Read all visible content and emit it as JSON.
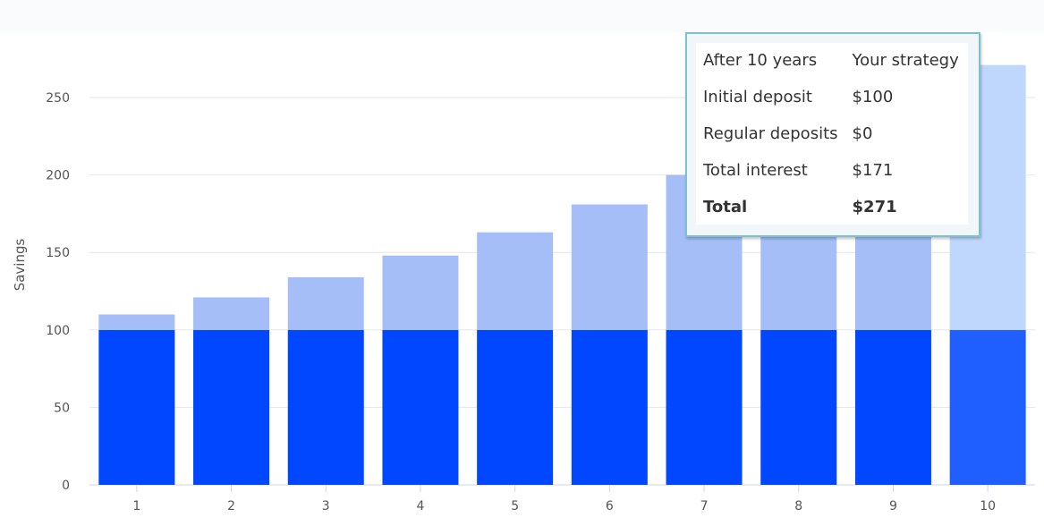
{
  "chart_data": {
    "type": "bar",
    "stacked": true,
    "categories": [
      "1",
      "2",
      "3",
      "4",
      "5",
      "6",
      "7",
      "8",
      "9",
      "10"
    ],
    "series": [
      {
        "name": "Initial deposit",
        "values": [
          100,
          100,
          100,
          100,
          100,
          100,
          100,
          100,
          100,
          100
        ],
        "color": "#0047ff",
        "hover_color": "#1f5eff"
      },
      {
        "name": "Total interest",
        "values": [
          10,
          21,
          34,
          48,
          63,
          81,
          100,
          122,
          146,
          171
        ],
        "color": "#a6bef8",
        "hover_color": "#c0d7fd"
      }
    ],
    "ylabel": "Savings",
    "xlabel": "",
    "ylim": [
      0,
      250
    ],
    "yticks": [
      "0",
      "50",
      "100",
      "150",
      "200",
      "250"
    ],
    "grid": true,
    "hovered_category": "10"
  },
  "tooltip": {
    "header": [
      "After 10 years",
      "Your strategy"
    ],
    "rows": [
      [
        "Initial deposit",
        "$100"
      ],
      [
        "Regular deposits",
        "$0"
      ],
      [
        "Total interest",
        "$171"
      ]
    ],
    "total": [
      "Total",
      "$271"
    ]
  }
}
